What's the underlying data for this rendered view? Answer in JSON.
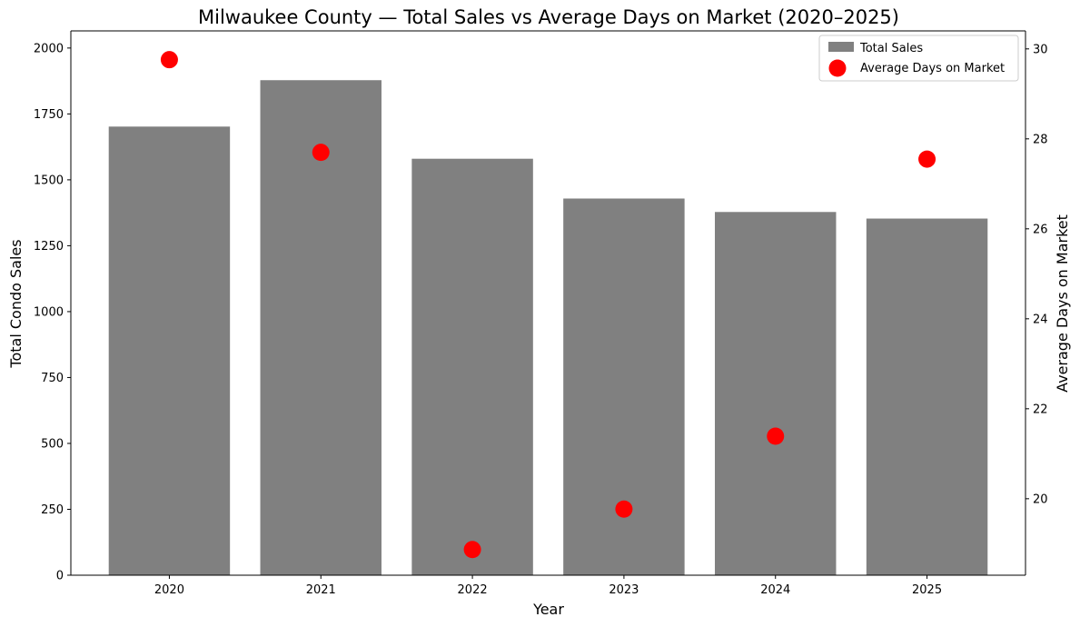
{
  "chart_data": {
    "type": "bar",
    "title": "Milwaukee County — Total Sales vs Average Days on Market (2020–2025)",
    "xlabel": "Year",
    "ylabel": "Total Condo Sales",
    "y2label": "Average Days on Market",
    "categories": [
      "2020",
      "2021",
      "2022",
      "2023",
      "2024",
      "2025"
    ],
    "series": [
      {
        "name": "Total Sales",
        "kind": "bar",
        "axis": "left",
        "color": "#808080",
        "values": [
          1702,
          1878,
          1580,
          1429,
          1378,
          1353
        ]
      },
      {
        "name": "Average Days on Market",
        "kind": "scatter",
        "axis": "right",
        "color": "#ff0000",
        "values": [
          29.76,
          27.7,
          18.87,
          19.77,
          21.39,
          27.55
        ]
      }
    ],
    "ylim": [
      0,
      2065
    ],
    "y2lim": [
      18.3,
      30.4
    ],
    "yticks": [
      "0",
      "250",
      "500",
      "750",
      "1000",
      "1250",
      "1500",
      "1750",
      "2000"
    ],
    "y2ticks": [
      "20",
      "22",
      "24",
      "26",
      "28",
      "30"
    ],
    "legend": "top-right",
    "grid": false
  }
}
